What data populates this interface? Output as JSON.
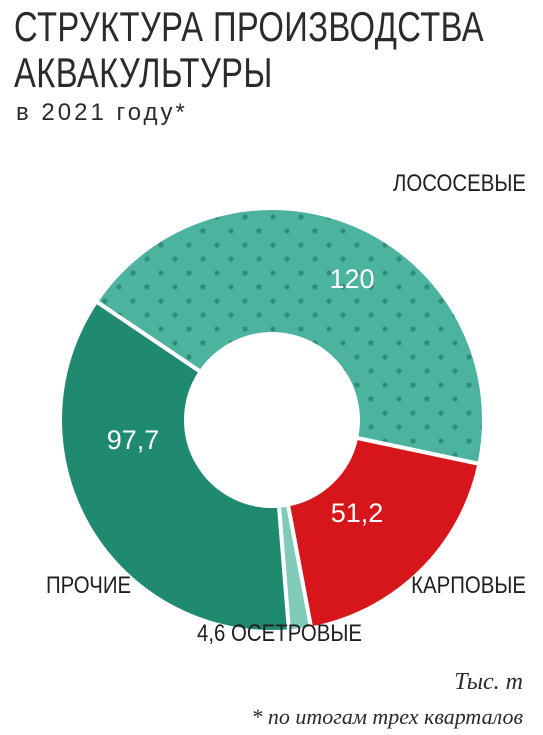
{
  "title_line1": "СТРУКТУРА ПРОИЗВОДСТВА",
  "title_line2": "АКВАКУЛЬТУРЫ",
  "subtitle": "в 2021 году*",
  "unit": "Тыс. т",
  "footnote": "* по итогам трех кварталов",
  "colors": {
    "salmon": "#4cb39e",
    "salmon_dots": "#2e8d78",
    "carp": "#d7161c",
    "sturgeon": "#7fcbb8",
    "other": "#1f8a70",
    "separator": "#ffffff"
  },
  "chart_data": {
    "type": "donut",
    "unit": "Тыс. т",
    "slices": [
      {
        "name": "ЛОСОСЕВЫЕ",
        "value": 120,
        "value_label": "120",
        "color": "#4cb39e",
        "pattern": "dots"
      },
      {
        "name": "КАРПОВЫЕ",
        "value": 51.2,
        "value_label": "51,2",
        "color": "#d7161c"
      },
      {
        "name": "ОСЕТРОВЫЕ",
        "value": 4.6,
        "value_label": "4,6",
        "color": "#7fcbb8"
      },
      {
        "name": "ПРОЧИЕ",
        "value": 97.7,
        "value_label": "97,7",
        "color": "#1f8a70"
      }
    ]
  }
}
